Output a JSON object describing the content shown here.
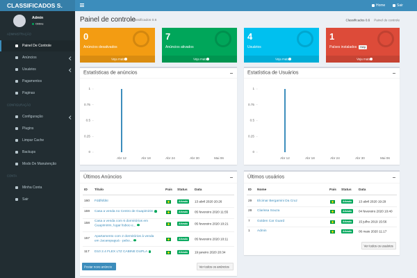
{
  "header": {
    "logo": "CLASSIFICADOS S.",
    "links": [
      "Home",
      "Sair"
    ]
  },
  "sidebar": {
    "user": {
      "name": "Admin",
      "status": "Online"
    },
    "sections": [
      {
        "title": "ADMINISTRAÇÃO",
        "items": [
          "Painel De Controle",
          "Anúncios",
          "Usuários",
          "Pagamentos",
          "Paginas"
        ]
      },
      {
        "title": "CONFIGURAÇÃO",
        "items": [
          "Configuração",
          "Plugins",
          "Limpar Cache",
          "Backups",
          "Modo De Manutenção"
        ]
      },
      {
        "title": "CONTA",
        "items": [
          "Minha Conta",
          "Sair"
        ]
      }
    ]
  },
  "page": {
    "title": "Painel de controle",
    "subtitle": "Classificados 0.6",
    "breadcrumb": [
      "Classificados 0.6",
      "Painel de controle"
    ]
  },
  "info_boxes": [
    {
      "number": 0,
      "label": "Anúncios desativados",
      "link": "Veja mais",
      "color": "#f39c12"
    },
    {
      "number": 7,
      "label": "Anúncios ativados",
      "link": "Veja mais",
      "color": "#00a65a"
    },
    {
      "number": 4,
      "label": "Usuários",
      "link": "Veja mais",
      "color": "#00c0ef"
    },
    {
      "number": 1,
      "label": "Países instalados",
      "badge": "Help",
      "link": "Veja mais",
      "color": "#dd4b39"
    }
  ],
  "charts": [
    {
      "type": "bar",
      "title": "Estatísticas de anúncios",
      "categories": [
        "Abr 12",
        "Abr 18",
        "Abr 24",
        "Abr 30",
        "Mai 06"
      ],
      "values": [
        1,
        0,
        0,
        0,
        0
      ],
      "color": "#3c8dbc",
      "ylim": [
        0,
        1
      ],
      "yticks": [
        0,
        0.25,
        0.5,
        0.75,
        1
      ]
    },
    {
      "type": "bar",
      "title": "Estatística de Usuários",
      "categories": [
        "Abr 12",
        "Abr 18",
        "Abr 24",
        "Abr 30",
        "Mai 06"
      ],
      "values": [
        1,
        0,
        0,
        0,
        0
      ],
      "color": "#3c8dbc",
      "ylim": [
        0,
        1
      ],
      "yticks": [
        0,
        0.25,
        0.5,
        0.75,
        1
      ]
    }
  ],
  "ads_table": {
    "title": "Últimos Anúncios",
    "columns": [
      "ID",
      "Título",
      "País",
      "Status",
      "Data"
    ],
    "rows": [
      {
        "id": 160,
        "title": "FddfsfdsI",
        "status": "Ativado",
        "date": "13 abril 2020 20:26"
      },
      {
        "id": 159,
        "title": "Casa a venda no Centro de Guapimirim",
        "status": "Ativado",
        "date": "05 fevereiro 2020 11:55"
      },
      {
        "id": 158,
        "title": "Casa a venda com 6 dormitórios em Guapimirim, lugar lisboo e...",
        "status": "Ativado",
        "date": "05 fevereiro 2020 10:21"
      },
      {
        "id": 157,
        "title": "Apartamento com 2 dormitórios à venda em Jacarepaguá - pebo...",
        "status": "Ativado",
        "date": "05 fevereiro 2020 10:11"
      },
      {
        "id": 117,
        "title": "D10 2.4 FLEX LTZ CABINE DUPLA",
        "status": "Ativado",
        "date": "19 janeiro 2020 20:34"
      }
    ],
    "buttons": [
      "Postar novo anúncio",
      "Ver todos os anúncios"
    ]
  },
  "users_table": {
    "title": "Últimos usuários",
    "columns": [
      "ID",
      "Nome",
      "País",
      "Status",
      "Data"
    ],
    "rows": [
      {
        "id": 29,
        "name": "Elcimar Bergamini Da Cruz",
        "status": "Ativado",
        "date": "13 abril 2020 19:29"
      },
      {
        "id": 28,
        "name": "Clarissa Souza",
        "status": "Ativado",
        "date": "04 fevereiro 2020 10:40"
      },
      {
        "id": 7,
        "name": "Golden Car Guard",
        "status": "Ativado",
        "date": "15 julho 2019 15:56"
      },
      {
        "id": 1,
        "name": "Admin",
        "status": "Ativado",
        "date": "06 maio 2020 11:17"
      }
    ],
    "buttons": [
      "Ver todos os usuários"
    ]
  }
}
